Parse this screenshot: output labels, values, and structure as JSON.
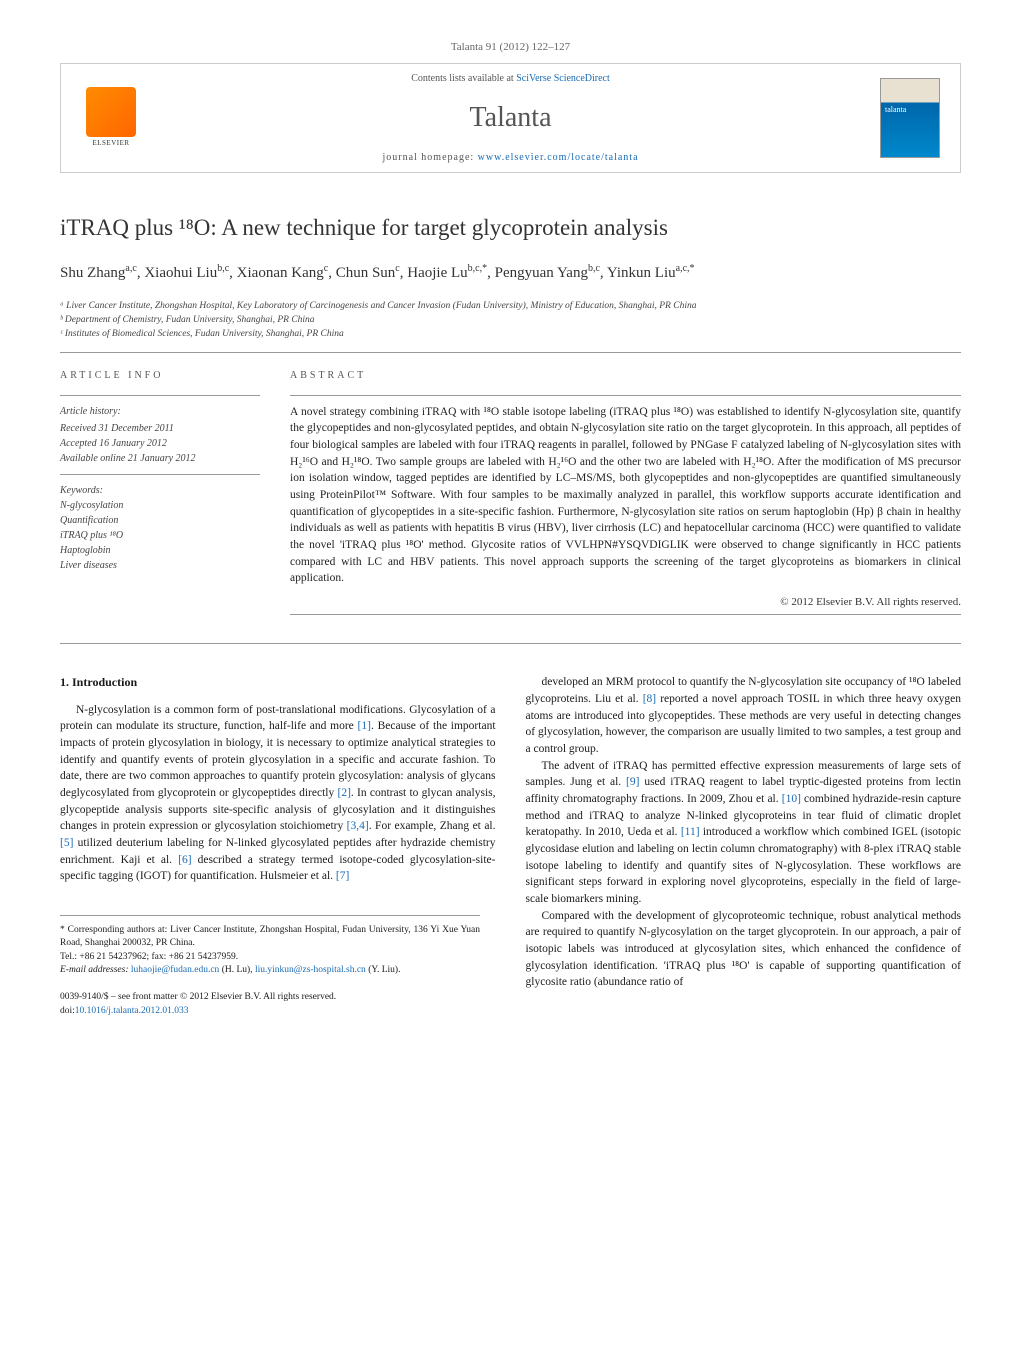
{
  "header": {
    "citation": "Talanta 91 (2012) 122–127",
    "contents_prefix": "Contents lists available at ",
    "contents_link": "SciVerse ScienceDirect",
    "journal_name": "Talanta",
    "homepage_prefix": "journal homepage: ",
    "homepage_url": "www.elsevier.com/locate/talanta",
    "publisher_name": "ELSEVIER"
  },
  "article": {
    "title": "iTRAQ plus ¹⁸O: A new technique for target glycoprotein analysis",
    "authors_html": "Shu Zhang",
    "authors": [
      {
        "name": "Shu Zhang",
        "aff": "a,c"
      },
      {
        "name": "Xiaohui Liu",
        "aff": "b,c"
      },
      {
        "name": "Xiaonan Kang",
        "aff": "c"
      },
      {
        "name": "Chun Sun",
        "aff": "c"
      },
      {
        "name": "Haojie Lu",
        "aff": "b,c,*"
      },
      {
        "name": "Pengyuan Yang",
        "aff": "b,c"
      },
      {
        "name": "Yinkun Liu",
        "aff": "a,c,*"
      }
    ],
    "affiliations": [
      "ᵃ Liver Cancer Institute, Zhongshan Hospital, Key Laboratory of Carcinogenesis and Cancer Invasion (Fudan University), Ministry of Education, Shanghai, PR China",
      "ᵇ Department of Chemistry, Fudan University, Shanghai, PR China",
      "ᶜ Institutes of Biomedical Sciences, Fudan University, Shanghai, PR China"
    ]
  },
  "info": {
    "header": "ARTICLE INFO",
    "history_label": "Article history:",
    "history": [
      "Received 31 December 2011",
      "Accepted 16 January 2012",
      "Available online 21 January 2012"
    ],
    "keywords_label": "Keywords:",
    "keywords": [
      "N-glycosylation",
      "Quantification",
      "iTRAQ plus ¹⁸O",
      "Haptoglobin",
      "Liver diseases"
    ]
  },
  "abstract": {
    "header": "ABSTRACT",
    "text": "A novel strategy combining iTRAQ with ¹⁸O stable isotope labeling (iTRAQ plus ¹⁸O) was established to identify N-glycosylation site, quantify the glycopeptides and non-glycosylated peptides, and obtain N-glycosylation site ratio on the target glycoprotein. In this approach, all peptides of four biological samples are labeled with four iTRAQ reagents in parallel, followed by PNGase F catalyzed labeling of N-glycosylation sites with H₂¹⁶O and H₂¹⁸O. Two sample groups are labeled with H₂¹⁶O and the other two are labeled with H₂¹⁸O. After the modification of MS precursor ion isolation window, tagged peptides are identified by LC–MS/MS, both glycopeptides and non-glycopeptides are quantified simultaneously using ProteinPilot™ Software. With four samples to be maximally analyzed in parallel, this workflow supports accurate identification and quantification of glycopeptides in a site-specific fashion. Furthermore, N-glycosylation site ratios on serum haptoglobin (Hp) β chain in healthy individuals as well as patients with hepatitis B virus (HBV), liver cirrhosis (LC) and hepatocellular carcinoma (HCC) were quantified to validate the novel 'iTRAQ plus ¹⁸O' method. Glycosite ratios of VVLHPN#YSQVDIGLIK were observed to change significantly in HCC patients compared with LC and HBV patients. This novel approach supports the screening of the target glycoproteins as biomarkers in clinical application.",
    "copyright": "© 2012 Elsevier B.V. All rights reserved."
  },
  "body": {
    "intro_heading": "1. Introduction",
    "col1_p1": "N-glycosylation is a common form of post-translational modifications. Glycosylation of a protein can modulate its structure, function, half-life and more [1]. Because of the important impacts of protein glycosylation in biology, it is necessary to optimize analytical strategies to identify and quantify events of protein glycosylation in a specific and accurate fashion. To date, there are two common approaches to quantify protein glycosylation: analysis of glycans deglycosylated from glycoprotein or glycopeptides directly [2]. In contrast to glycan analysis, glycopeptide analysis supports site-specific analysis of glycosylation and it distinguishes changes in protein expression or glycosylation stoichiometry [3,4]. For example, Zhang et al. [5] utilized deuterium labeling for N-linked glycosylated peptides after hydrazide chemistry enrichment. Kaji et al. [6] described a strategy termed isotope-coded glycosylation-site-specific tagging (IGOT) for quantification. Hulsmeier et al. [7]",
    "col2_p1": "developed an MRM protocol to quantify the N-glycosylation site occupancy of ¹⁸O labeled glycoproteins. Liu et al. [8] reported a novel approach TOSIL in which three heavy oxygen atoms are introduced into glycopeptides. These methods are very useful in detecting changes of glycosylation, however, the comparison are usually limited to two samples, a test group and a control group.",
    "col2_p2": "The advent of iTRAQ has permitted effective expression measurements of large sets of samples. Jung et al. [9] used iTRAQ reagent to label tryptic-digested proteins from lectin affinity chromatography fractions. In 2009, Zhou et al. [10] combined hydrazide-resin capture method and iTRAQ to analyze N-linked glycoproteins in tear fluid of climatic droplet keratopathy. In 2010, Ueda et al. [11] introduced a workflow which combined IGEL (isotopic glycosidase elution and labeling on lectin column chromatography) with 8-plex iTRAQ stable isotope labeling to identify and quantify sites of N-glycosylation. These workflows are significant steps forward in exploring novel glycoproteins, especially in the field of large-scale biomarkers mining.",
    "col2_p3": "Compared with the development of glycoproteomic technique, robust analytical methods are required to quantify N-glycosylation on the target glycoprotein. In our approach, a pair of isotopic labels was introduced at glycosylation sites, which enhanced the confidence of glycosylation identification. 'iTRAQ plus ¹⁸O' is capable of supporting quantification of glycosite ratio (abundance ratio of"
  },
  "footer": {
    "corresponding": "* Corresponding authors at: Liver Cancer Institute, Zhongshan Hospital, Fudan University, 136 Yi Xue Yuan Road, Shanghai 200032, PR China.",
    "tel": "Tel.: +86 21 54237962; fax: +86 21 54237959.",
    "email_label": "E-mail addresses: ",
    "email1": "luhaojie@fudan.edu.cn",
    "email1_name": " (H. Lu), ",
    "email2": "liu.yinkun@zs-hospital.sh.cn",
    "email2_name": "(Y. Liu).",
    "issn": "0039-9140/$ – see front matter © 2012 Elsevier B.V. All rights reserved.",
    "doi_label": "doi:",
    "doi": "10.1016/j.talanta.2012.01.033"
  },
  "colors": {
    "link": "#1a6bb3",
    "text": "#1a1a1a",
    "muted": "#555",
    "border": "#999"
  }
}
